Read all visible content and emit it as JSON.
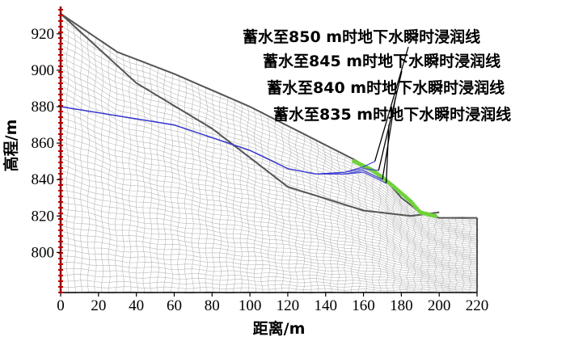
{
  "chart_data": {
    "type": "line",
    "xlabel": "距离/m",
    "ylabel": "高程/m",
    "xlim": [
      0,
      220
    ],
    "ylim": [
      778,
      935
    ],
    "xticks": [
      "0",
      "20",
      "40",
      "60",
      "80",
      "100",
      "120",
      "140",
      "160",
      "180",
      "200",
      "220"
    ],
    "yticks": [
      "920",
      "900",
      "880",
      "860",
      "840",
      "820",
      "800"
    ],
    "xtick_values": [
      0,
      20,
      40,
      60,
      80,
      100,
      120,
      140,
      160,
      180,
      200,
      220
    ],
    "ytick_values": [
      920,
      900,
      880,
      860,
      840,
      820,
      800
    ],
    "ground_surface": {
      "x": [
        0,
        30,
        60,
        100,
        155,
        170,
        180,
        190,
        200,
        220
      ],
      "y": [
        931,
        910,
        898,
        880,
        851,
        842,
        830,
        822,
        819,
        819
      ]
    },
    "inner_boundary": {
      "x": [
        0,
        40,
        80,
        120,
        160,
        185,
        200
      ],
      "y": [
        931,
        893,
        868,
        836,
        823,
        820,
        822
      ]
    },
    "seepage_face": {
      "x": [
        155,
        165,
        175,
        185,
        190,
        198
      ],
      "y": [
        850,
        845,
        837,
        828,
        822,
        820
      ]
    },
    "colors": {
      "mesh": "#b8b8b8",
      "boundary": "#555555",
      "phreatic": "#3a3ad0",
      "seepage": "#6fd23a",
      "fixed_nodes": "#c00000"
    },
    "series": [
      {
        "name": "蓄水至850 m时地下水瞬时浸润线",
        "x": [
          0,
          60,
          100,
          120,
          135,
          150,
          160,
          166
        ],
        "y": [
          880,
          870,
          856,
          846,
          843,
          844,
          847,
          850
        ]
      },
      {
        "name": "蓄水至845 m时地下水瞬时浸润线",
        "x": [
          0,
          60,
          100,
          120,
          135,
          150,
          160,
          168
        ],
        "y": [
          880,
          870,
          856,
          846,
          843,
          844,
          846,
          845
        ]
      },
      {
        "name": "蓄水至840 m时地下水瞬时浸润线",
        "x": [
          0,
          60,
          100,
          120,
          135,
          150,
          160,
          170
        ],
        "y": [
          880,
          870,
          856,
          846,
          843,
          843,
          845,
          840
        ]
      },
      {
        "name": "蓄水至835 m时地下水瞬时浸润线",
        "x": [
          0,
          60,
          100,
          120,
          135,
          150,
          160,
          172
        ],
        "y": [
          880,
          870,
          856,
          846,
          843,
          843,
          844,
          838
        ]
      }
    ]
  }
}
